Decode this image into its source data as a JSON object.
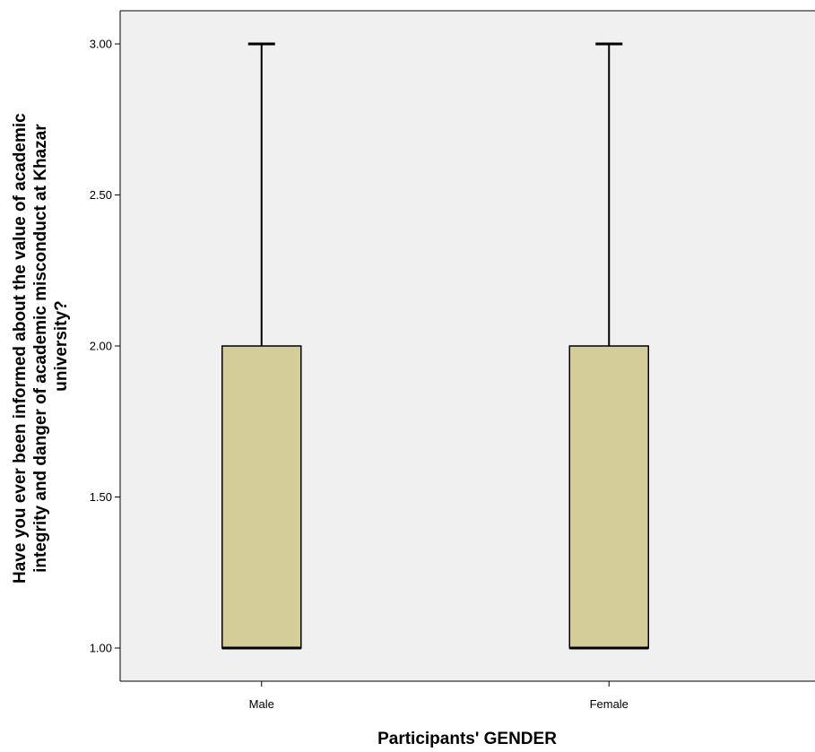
{
  "chart_data": {
    "type": "boxplot",
    "title": "",
    "xlabel": "Participants' GENDER",
    "ylabel_lines": [
      "Have you ever been informed about the value of academic",
      "integrity and danger of academic misconduct at Khazar",
      "university?"
    ],
    "categories": [
      "Male",
      "Female"
    ],
    "boxes": [
      {
        "category": "Male",
        "min": 1.0,
        "q1": 1.0,
        "median": 1.0,
        "q3": 2.0,
        "max": 3.0
      },
      {
        "category": "Female",
        "min": 1.0,
        "q1": 1.0,
        "median": 1.0,
        "q3": 2.0,
        "max": 3.0
      }
    ],
    "ylim": [
      0.9,
      3.11
    ],
    "yticks": [
      1.0,
      1.5,
      2.0,
      2.5,
      3.0
    ],
    "ytick_labels": [
      "1.00",
      "1.50",
      "2.00",
      "2.50",
      "3.00"
    ],
    "grid": false,
    "colors": {
      "plot_background": "#f0f0f0",
      "box_fill": "#d4cd9a",
      "line": "#000000"
    }
  }
}
